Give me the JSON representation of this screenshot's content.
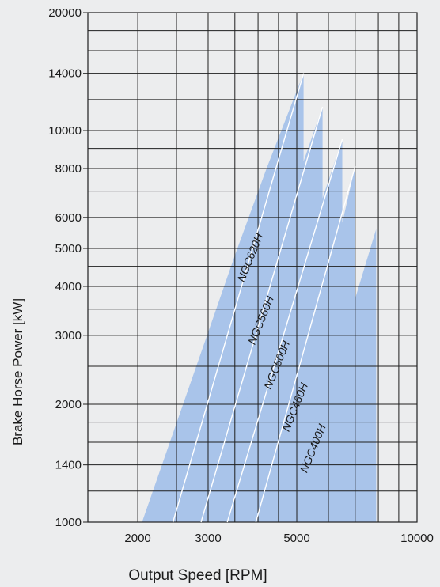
{
  "chart_data": {
    "type": "area",
    "title": "",
    "xlabel": "Output  Speed  [RPM]",
    "ylabel": "Brake Horse Power [kW]",
    "x_scale": "log",
    "y_scale": "log",
    "xlim": [
      1500,
      10000
    ],
    "ylim": [
      1000,
      20000
    ],
    "x_ticks": [
      2000,
      3000,
      5000,
      10000
    ],
    "x_tick_labels": [
      "2000",
      "3000",
      "5000",
      "10000"
    ],
    "x_gridlines": [
      1500,
      2000,
      2500,
      3000,
      3500,
      4000,
      4500,
      5000,
      6000,
      7000,
      8000,
      9000,
      10000
    ],
    "y_ticks": [
      1000,
      1400,
      2000,
      3000,
      4000,
      5000,
      6000,
      8000,
      10000,
      14000,
      20000
    ],
    "y_tick_labels": [
      "1000",
      "1400",
      "2000",
      "3000",
      "4000",
      "5000",
      "6000",
      "8000",
      "10000",
      "14000",
      "20000"
    ],
    "y_gridlines": [
      1000,
      1200,
      1400,
      1600,
      1800,
      2000,
      2500,
      3000,
      3500,
      4000,
      4500,
      5000,
      6000,
      7000,
      8000,
      9000,
      10000,
      12000,
      14000,
      16000,
      18000,
      20000
    ],
    "grid": true,
    "band_color": "#a9c4ea",
    "divider_color": "#ffffff",
    "series": [
      {
        "name": "NGC620H",
        "label_at": [
          3900,
          4700
        ],
        "speed_rpm": [
          2050,
          3500,
          4200,
          5200,
          5200
        ],
        "power_kw": [
          1000,
          4800,
          8000,
          14000,
          1000
        ]
      },
      {
        "name": "NGC560H",
        "label_at": [
          4150,
          3250
        ],
        "speed_rpm": [
          2450,
          3800,
          4700,
          5800,
          5800
        ],
        "power_kw": [
          1000,
          3400,
          6200,
          11500,
          1000
        ]
      },
      {
        "name": "NGC500H",
        "label_at": [
          4550,
          2500
        ],
        "speed_rpm": [
          2880,
          4300,
          5300,
          6500,
          6500
        ],
        "power_kw": [
          1000,
          3000,
          5100,
          9500,
          1000
        ]
      },
      {
        "name": "NGC460H",
        "label_at": [
          5050,
          1950
        ],
        "speed_rpm": [
          3350,
          4700,
          5800,
          7000,
          7000
        ],
        "power_kw": [
          1000,
          2000,
          3500,
          8100,
          1000
        ]
      },
      {
        "name": "NGC400H",
        "label_at": [
          5600,
          1530
        ],
        "speed_rpm": [
          3950,
          5200,
          6500,
          7900,
          7900
        ],
        "power_kw": [
          1000,
          1500,
          2900,
          5600,
          1000
        ]
      }
    ]
  }
}
